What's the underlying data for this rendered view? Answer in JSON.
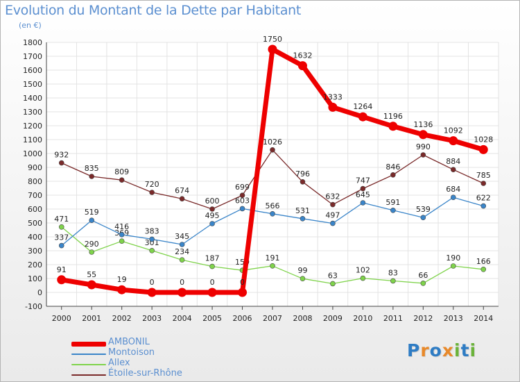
{
  "title": "Evolution du Montant de la Dette par Habitant",
  "unit": "(en €)",
  "logo": {
    "text": "Proxiti",
    "letters": [
      "P",
      "r",
      "o",
      "x",
      "i",
      "t",
      "i"
    ],
    "colors": [
      "#2e7cc4",
      "#e8892a",
      "#2e7cc4",
      "#e8892a",
      "#6bb33a",
      "#2e7cc4",
      "#6bb33a"
    ]
  },
  "chart_data": {
    "type": "line",
    "title": "Evolution du Montant de la Dette par Habitant",
    "ylabel": "(en €)",
    "ylim": [
      -100,
      1800
    ],
    "yticks": [
      -100,
      0,
      100,
      200,
      300,
      400,
      500,
      600,
      700,
      800,
      900,
      1000,
      1100,
      1200,
      1300,
      1400,
      1500,
      1600,
      1700,
      1800
    ],
    "x": [
      "2000",
      "2001",
      "2002",
      "2003",
      "2004",
      "2005",
      "2006",
      "2007",
      "2008",
      "2009",
      "2010",
      "2011",
      "2012",
      "2013",
      "2014"
    ],
    "grid": true,
    "legend_position": "bottom-left",
    "series": [
      {
        "name": "Étoile-sur-Rhône",
        "color": "#7a2a2a",
        "values": [
          932,
          835,
          809,
          720,
          674,
          600,
          699,
          1026,
          796,
          632,
          747,
          846,
          990,
          884,
          785
        ]
      },
      {
        "name": "Allex",
        "color": "#7fd34b",
        "values": [
          471,
          290,
          369,
          301,
          234,
          187,
          159,
          191,
          99,
          63,
          102,
          83,
          66,
          190,
          166
        ]
      },
      {
        "name": "Montoison",
        "color": "#3a85c9",
        "values": [
          337,
          519,
          416,
          383,
          345,
          495,
          603,
          566,
          531,
          497,
          645,
          591,
          539,
          684,
          622
        ]
      },
      {
        "name": "AMBONIL",
        "color": "#ee0000",
        "values": [
          91,
          55,
          19,
          0,
          0,
          0,
          0,
          1750,
          1632,
          1333,
          1264,
          1196,
          1136,
          1092,
          1028
        ]
      }
    ],
    "legend_order": [
      "AMBONIL",
      "Montoison",
      "Allex",
      "Étoile-sur-Rhône"
    ]
  }
}
